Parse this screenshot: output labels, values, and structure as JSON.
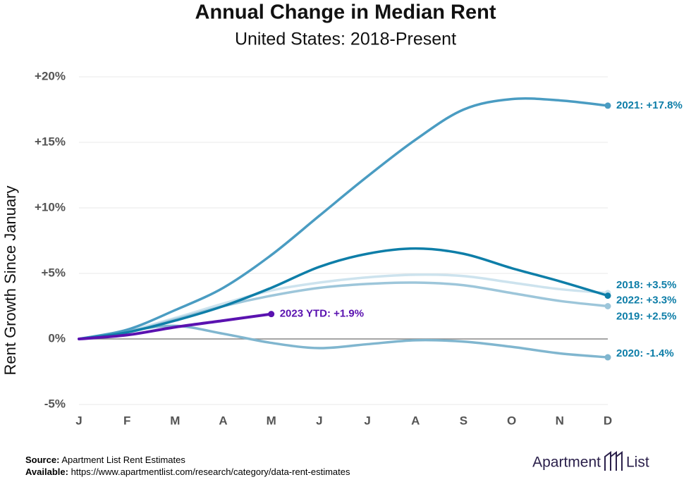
{
  "chart_data": {
    "type": "line",
    "title": "Annual Change in Median Rent",
    "subtitle": "United States: 2018-Present",
    "ylabel": "Rent Growth Since January",
    "categories": [
      "J",
      "F",
      "M",
      "A",
      "M",
      "J",
      "J",
      "A",
      "S",
      "O",
      "N",
      "D"
    ],
    "series": [
      {
        "name": "2021: +17.8%",
        "color": "#4a9cc2",
        "values": [
          0,
          0.7,
          2.2,
          3.9,
          6.4,
          9.4,
          12.4,
          15.2,
          17.5,
          18.3,
          18.2,
          17.8
        ]
      },
      {
        "name": "2022: +3.3%",
        "color": "#0e7ea8",
        "values": [
          0,
          0.5,
          1.4,
          2.5,
          3.9,
          5.5,
          6.5,
          6.9,
          6.5,
          5.4,
          4.4,
          3.3
        ]
      },
      {
        "name": "2018: +3.5%",
        "color": "#cde3ee",
        "values": [
          0,
          0.6,
          1.6,
          2.7,
          3.7,
          4.3,
          4.7,
          4.9,
          4.8,
          4.3,
          3.8,
          3.5
        ]
      },
      {
        "name": "2019: +2.5%",
        "color": "#9dc6da",
        "values": [
          0,
          0.5,
          1.5,
          2.5,
          3.3,
          3.9,
          4.2,
          4.3,
          4.1,
          3.5,
          2.9,
          2.5
        ]
      },
      {
        "name": "2020: -1.4%",
        "color": "#80b6cf",
        "values": [
          0,
          0.6,
          1.0,
          0.4,
          -0.3,
          -0.7,
          -0.4,
          -0.1,
          -0.2,
          -0.6,
          -1.1,
          -1.4
        ]
      },
      {
        "name": "2023 YTD: +1.9%",
        "color": "#5a12b0",
        "values": [
          0,
          0.3,
          0.9,
          1.4,
          1.9,
          null,
          null,
          null,
          null,
          null,
          null,
          null
        ]
      }
    ],
    "ylim": [
      -5,
      20
    ],
    "yticks": [
      {
        "value": -5,
        "label": "-5%"
      },
      {
        "value": 0,
        "label": "0%"
      },
      {
        "value": 5,
        "label": "+5%"
      },
      {
        "value": 10,
        "label": "+10%"
      },
      {
        "value": 15,
        "label": "+15%"
      },
      {
        "value": 20,
        "label": "+20%"
      }
    ],
    "grid": true
  },
  "footer": {
    "source_label": "Source:",
    "source": "Apartment List Rent Estimates",
    "available_label": "Available:",
    "available": "https://www.apartmentlist.com/research/category/data-rent-estimates"
  },
  "logo": {
    "left": "Apartment",
    "right": "List"
  }
}
